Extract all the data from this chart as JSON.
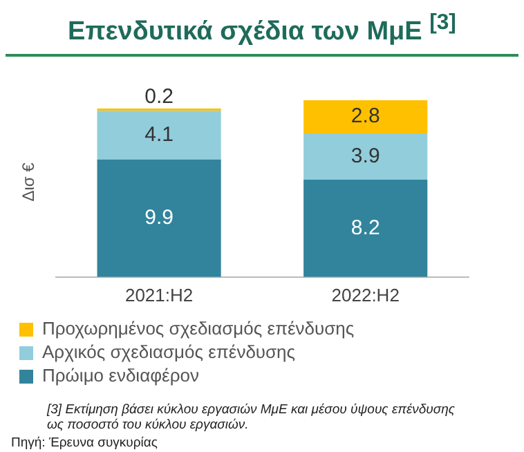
{
  "chart_data": {
    "type": "bar",
    "title": "Επενδυτικά σχέδια των ΜμΕ $^{[3]}$",
    "ylabel": "Δισ €",
    "categories": [
      "2021:H2",
      "2022:H2"
    ],
    "stacked": true,
    "data_labels": true,
    "tick_labels": "x",
    "grid": false,
    "legend": "bottom",
    "series": [
      {
        "name": "Πρώιμο ενδιαφέρον",
        "color": "#31849b",
        "values": [
          9.9,
          8.2
        ]
      },
      {
        "name": "Αρχικός σχεδιασμός επένδυσης",
        "color": "#92cddc",
        "values": [
          4.1,
          3.9
        ]
      },
      {
        "name": "Προχωρημένος σχεδιασμός επένδυσης",
        "color": "#ffc000",
        "values": [
          0.2,
          2.8
        ]
      }
    ],
    "annotations": [
      "[3] Εκτίμηση βάσει κύκλου εργασιών ΜμΕ και μέσου ύψους επένδυσης ως ποσοστό του κύκλου εργασιών.",
      "Πηγή: Έρευνα συγκυρίας"
    ]
  }
}
